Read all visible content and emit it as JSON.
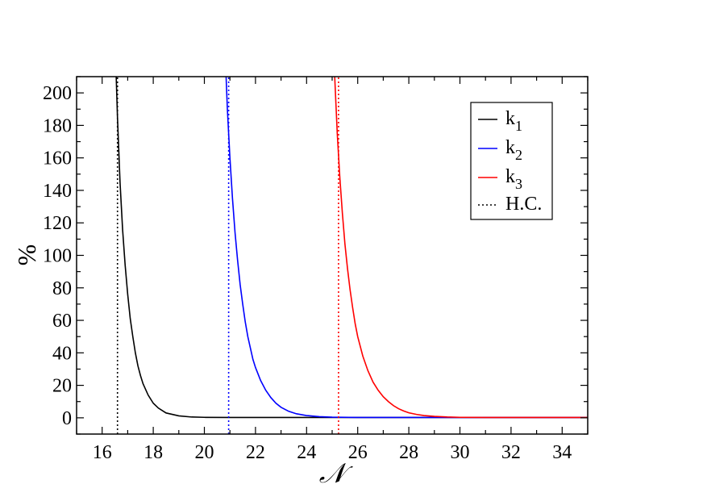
{
  "chart_data": {
    "type": "line",
    "title": "",
    "xlabel": "𝒩",
    "ylabel": "%",
    "xlim": [
      15,
      35
    ],
    "ylim": [
      -10,
      210
    ],
    "xticks": [
      16,
      18,
      20,
      22,
      24,
      26,
      28,
      30,
      32,
      34
    ],
    "yticks": [
      0,
      20,
      40,
      60,
      80,
      100,
      120,
      140,
      160,
      180,
      200
    ],
    "grid": false,
    "legend_position": "top-right",
    "legend": [
      {
        "label": "k",
        "sub": "1",
        "color": "#000000",
        "style": "solid"
      },
      {
        "label": "k",
        "sub": "2",
        "color": "#0000ff",
        "style": "solid"
      },
      {
        "label": "k",
        "sub": "3",
        "color": "#ff0000",
        "style": "solid"
      },
      {
        "label": "H.C.",
        "sub": "",
        "color": "#000000",
        "style": "dotted"
      }
    ],
    "series": [
      {
        "legend_index": 0,
        "color": "#000000",
        "style": "solid",
        "x": [
          16.55,
          16.6,
          16.7,
          16.8,
          16.9,
          17.0,
          17.1,
          17.2,
          17.3,
          17.4,
          17.5,
          17.6,
          17.8,
          18.0,
          18.2,
          18.5,
          19.0,
          19.5,
          20.0,
          21.0,
          35.0
        ],
        "y": [
          210,
          185,
          145,
          116,
          94,
          76,
          61,
          50,
          40,
          32,
          26,
          21,
          14,
          9,
          6,
          3,
          1.2,
          0.5,
          0.3,
          0.2,
          0.2
        ]
      },
      {
        "legend_index": 1,
        "color": "#0000ff",
        "style": "solid",
        "x": [
          20.85,
          20.9,
          21.0,
          21.1,
          21.2,
          21.3,
          21.4,
          21.5,
          21.6,
          21.7,
          21.8,
          21.9,
          22.0,
          22.2,
          22.4,
          22.6,
          22.8,
          23.0,
          23.3,
          23.6,
          24.0,
          24.5,
          25.0,
          26.0,
          35.0
        ],
        "y": [
          210,
          190,
          160,
          135,
          114,
          97,
          82,
          70,
          59,
          50,
          43,
          36,
          31,
          23,
          17,
          12.5,
          9,
          6.5,
          4,
          2.5,
          1.4,
          0.7,
          0.4,
          0.2,
          0.2
        ]
      },
      {
        "legend_index": 2,
        "color": "#ff0000",
        "style": "solid",
        "x": [
          25.1,
          25.2,
          25.3,
          25.4,
          25.5,
          25.6,
          25.7,
          25.8,
          25.9,
          26.0,
          26.2,
          26.4,
          26.6,
          26.8,
          27.0,
          27.2,
          27.4,
          27.6,
          27.8,
          28.0,
          28.3,
          28.6,
          29.0,
          29.5,
          30.0,
          31.0,
          35.0
        ],
        "y": [
          210,
          175,
          148,
          126,
          107,
          92,
          79,
          68,
          58,
          50,
          38,
          29,
          22,
          17,
          13,
          10,
          7.5,
          5.6,
          4.2,
          3.1,
          2.1,
          1.4,
          0.9,
          0.5,
          0.3,
          0.2,
          0.2
        ]
      },
      {
        "legend_index": 3,
        "color": "#000000",
        "style": "dotted",
        "x": [
          16.6,
          16.6
        ],
        "y": [
          -10,
          210
        ]
      },
      {
        "legend_index": 3,
        "color": "#0000ff",
        "style": "dotted",
        "x": [
          20.95,
          20.95
        ],
        "y": [
          -10,
          210
        ]
      },
      {
        "legend_index": 3,
        "color": "#ff0000",
        "style": "dotted",
        "x": [
          25.25,
          25.25
        ],
        "y": [
          -10,
          210
        ]
      }
    ]
  }
}
